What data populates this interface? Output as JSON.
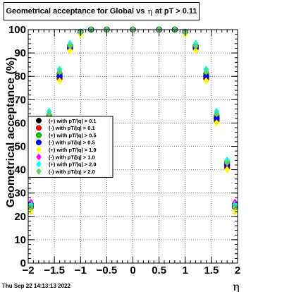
{
  "chart_data": {
    "type": "scatter",
    "title_prefix": "Geometrical acceptance for Global vs",
    "title_symbol": "η",
    "title_suffix": "at pT > 0.11",
    "xlabel": "η",
    "ylabel": "Geometrical acceptance (%)",
    "xlim": [
      -2,
      2
    ],
    "ylim": [
      0,
      100
    ],
    "x_ticks": [
      "−2",
      "−1.5",
      "−1",
      "−0.5",
      "0",
      "0.5",
      "1",
      "1.5",
      "2"
    ],
    "y_ticks": [
      "0",
      "10",
      "20",
      "30",
      "40",
      "50",
      "60",
      "70",
      "80",
      "90",
      "100"
    ],
    "grid": true,
    "legend_position": "middle-left",
    "series": [
      {
        "name": "(+) with pT/|q| > 0.1",
        "marker": "circle",
        "color": "#000000",
        "x": [
          -1.95,
          -1.8,
          -1.6,
          -1.4,
          -1.2,
          -1.0,
          -0.8,
          -0.5,
          0.0,
          0.5,
          0.8,
          1.0,
          1.2,
          1.4,
          1.6,
          1.8,
          1.95
        ],
        "y": [
          25,
          42,
          62,
          80,
          93,
          99,
          100,
          100,
          100,
          100,
          100,
          99,
          93,
          80,
          62,
          42,
          25
        ]
      },
      {
        "name": "(-) with pT/|q| > 0.1",
        "marker": "circle",
        "color": "#ff0000",
        "x": [
          -1.95,
          -1.8,
          -1.6,
          -1.4,
          -1.2,
          -1.0,
          -0.8,
          -0.5,
          0.0,
          0.5,
          0.8,
          1.0,
          1.2,
          1.4,
          1.6,
          1.8,
          1.95
        ],
        "y": [
          24,
          41,
          61,
          79,
          92,
          99,
          100,
          100,
          100,
          100,
          100,
          99,
          92,
          79,
          61,
          41,
          24
        ]
      },
      {
        "name": "(+) with pT/|q| > 0.5",
        "marker": "circle",
        "color": "#00cc00",
        "x": [
          -1.95,
          -1.8,
          -1.6,
          -1.4,
          -1.2,
          -1.0,
          -0.8,
          -0.5,
          0.0,
          0.5,
          0.8,
          1.0,
          1.2,
          1.4,
          1.6,
          1.8,
          1.95
        ],
        "y": [
          24,
          43,
          63,
          81,
          93,
          99,
          100,
          100,
          100,
          100,
          100,
          99,
          93,
          81,
          63,
          43,
          24
        ]
      },
      {
        "name": "(-) with pT/|q| > 0.5",
        "marker": "circle",
        "color": "#0000ff",
        "x": [
          -1.95,
          -1.8,
          -1.6,
          -1.4,
          -1.2,
          -1.0,
          -0.8,
          -0.5,
          0.0,
          0.5,
          0.8,
          1.0,
          1.2,
          1.4,
          1.6,
          1.8,
          1.95
        ],
        "y": [
          25,
          42,
          62,
          80,
          92,
          99,
          100,
          100,
          100,
          100,
          100,
          99,
          92,
          80,
          62,
          42,
          25
        ]
      },
      {
        "name": "(+) with pT/|q| > 1.0",
        "marker": "diamond",
        "color": "#ffff00",
        "x": [
          -1.95,
          -1.8,
          -1.6,
          -1.4,
          -1.2,
          -1.0,
          -0.8,
          -0.5,
          0.0,
          0.5,
          0.8,
          1.0,
          1.2,
          1.4,
          1.6,
          1.8,
          1.95
        ],
        "y": [
          22,
          40,
          60,
          78,
          91,
          98,
          100,
          100,
          100,
          100,
          100,
          98,
          91,
          78,
          60,
          40,
          22
        ]
      },
      {
        "name": "(-) with pT/|q| > 1.0",
        "marker": "diamond",
        "color": "#ff00ff",
        "x": [
          -1.95,
          -1.8,
          -1.6,
          -1.4,
          -1.2,
          -1.0,
          -0.8,
          -0.5,
          0.0,
          0.5,
          0.8,
          1.0,
          1.2,
          1.4,
          1.6,
          1.8,
          1.95
        ],
        "y": [
          26,
          43,
          64,
          82,
          93,
          99,
          100,
          100,
          100,
          100,
          100,
          99,
          93,
          82,
          64,
          43,
          26
        ]
      },
      {
        "name": "(+) with pT/|q| > 2.0",
        "marker": "diamond",
        "color": "#00ffff",
        "x": [
          -1.95,
          -1.8,
          -1.6,
          -1.4,
          -1.2,
          -1.0,
          -0.8,
          -0.5,
          0.0,
          0.5,
          0.8,
          1.0,
          1.2,
          1.4,
          1.6,
          1.8,
          1.95
        ],
        "y": [
          25,
          44,
          65,
          83,
          94,
          99,
          100,
          100,
          100,
          100,
          100,
          99,
          94,
          83,
          65,
          44,
          25
        ]
      },
      {
        "name": "(-) with pT/|q| > 2.0",
        "marker": "diamond",
        "color": "#66cc66",
        "x": [
          -1.95,
          -1.8,
          -1.6,
          -1.4,
          -1.2,
          -1.0,
          -0.8,
          -0.5,
          0.0,
          0.5,
          0.8,
          1.0,
          1.2,
          1.4,
          1.6,
          1.8,
          1.95
        ],
        "y": [
          24,
          43,
          64,
          82,
          93,
          99,
          100,
          100,
          100,
          100,
          100,
          99,
          93,
          82,
          64,
          43,
          24
        ]
      }
    ]
  },
  "footer": {
    "datestamp": "Thu Sep 22 14:13:13 2022"
  }
}
